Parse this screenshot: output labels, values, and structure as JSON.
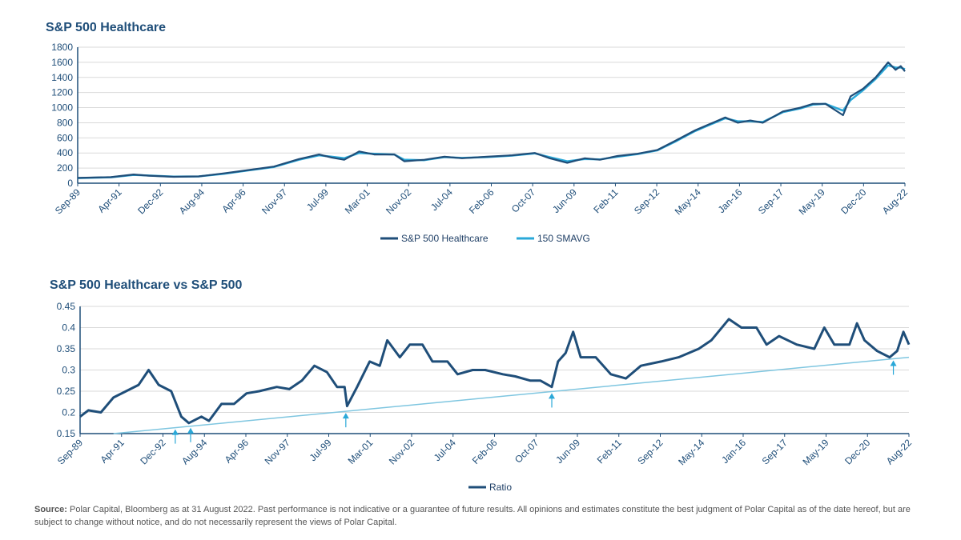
{
  "colors": {
    "primary": "#1f4e79",
    "sma": "#2aa8d8",
    "trend": "#7fc6e0",
    "grid": "#d9d9d9",
    "text": "#1f4e79"
  },
  "x_tick_labels": [
    "Sep-89",
    "Apr-91",
    "Dec-92",
    "Aug-94",
    "Apr-96",
    "Nov-97",
    "Jul-99",
    "Mar-01",
    "Nov-02",
    "Jul-04",
    "Feb-06",
    "Oct-07",
    "Jun-09",
    "Feb-11",
    "Sep-12",
    "May-14",
    "Jan-16",
    "Sep-17",
    "May-19",
    "Dec-20",
    "Aug-22"
  ],
  "chart_data": [
    {
      "type": "line",
      "title": "S&P 500 Healthcare",
      "xlim": [
        "Sep-89",
        "Aug-22"
      ],
      "ylim": [
        0,
        1800
      ],
      "y_ticks": [
        0,
        200,
        400,
        600,
        800,
        1000,
        1200,
        1400,
        1600,
        1800
      ],
      "grid": true,
      "legend": "bottom",
      "series": [
        {
          "name": "S&P 500 Healthcare",
          "color": "#1f4e79",
          "x": [
            1989.67,
            1991.0,
            1991.9,
            1992.5,
            1993.5,
            1994.5,
            1995.5,
            1996.5,
            1997.5,
            1998.5,
            1999.3,
            1999.8,
            2000.3,
            2000.9,
            2001.5,
            2002.3,
            2002.7,
            2003.5,
            2004.3,
            2005.0,
            2006.0,
            2007.0,
            2007.9,
            2008.5,
            2009.2,
            2009.9,
            2010.5,
            2011.2,
            2012.0,
            2012.8,
            2013.5,
            2014.3,
            2015.5,
            2016.0,
            2016.5,
            2017.0,
            2017.8,
            2018.5,
            2019.0,
            2019.5,
            2020.2,
            2020.5,
            2021.0,
            2021.5,
            2022.0,
            2022.3,
            2022.5,
            2022.67
          ],
          "y": [
            70,
            80,
            115,
            100,
            85,
            90,
            130,
            175,
            220,
            320,
            380,
            340,
            310,
            420,
            380,
            380,
            290,
            310,
            350,
            330,
            350,
            370,
            400,
            330,
            270,
            330,
            310,
            360,
            390,
            440,
            560,
            700,
            870,
            800,
            830,
            800,
            950,
            1000,
            1050,
            1050,
            900,
            1150,
            1250,
            1400,
            1600,
            1500,
            1550,
            1480
          ]
        },
        {
          "name": "150 SMAVG",
          "color": "#2aa8d8",
          "x": [
            1989.67,
            1991.0,
            1991.9,
            1992.5,
            1993.5,
            1994.5,
            1995.5,
            1996.5,
            1997.5,
            1998.5,
            1999.3,
            1999.8,
            2000.3,
            2000.9,
            2001.5,
            2002.3,
            2002.7,
            2003.5,
            2004.3,
            2005.0,
            2006.0,
            2007.0,
            2007.9,
            2008.5,
            2009.2,
            2009.9,
            2010.5,
            2011.2,
            2012.0,
            2012.8,
            2013.5,
            2014.3,
            2015.5,
            2016.0,
            2016.5,
            2017.0,
            2017.8,
            2018.5,
            2019.0,
            2019.5,
            2020.2,
            2020.5,
            2021.0,
            2021.5,
            2022.0,
            2022.3,
            2022.5,
            2022.67
          ],
          "y": [
            68,
            78,
            110,
            102,
            88,
            90,
            125,
            170,
            215,
            310,
            370,
            350,
            330,
            400,
            390,
            380,
            310,
            305,
            345,
            335,
            345,
            365,
            395,
            345,
            290,
            320,
            315,
            350,
            385,
            435,
            550,
            690,
            860,
            820,
            820,
            810,
            940,
            990,
            1040,
            1050,
            960,
            1100,
            1230,
            1380,
            1560,
            1530,
            1530,
            1510
          ]
        }
      ]
    },
    {
      "type": "line",
      "title": "S&P 500 Healthcare vs S&P 500",
      "xlim": [
        "Sep-89",
        "Aug-22"
      ],
      "ylim": [
        0.15,
        0.45
      ],
      "y_ticks": [
        "0.15",
        "0.2",
        "0.25",
        "0.3",
        "0.35",
        "0.4",
        "0.45"
      ],
      "grid": true,
      "legend": "bottom",
      "series": [
        {
          "name": "Ratio",
          "color": "#1f4e79",
          "x": [
            1989.67,
            1990.0,
            1990.5,
            1991.0,
            1991.5,
            1992.0,
            1992.4,
            1992.8,
            1993.3,
            1993.7,
            1994.0,
            1994.5,
            1994.8,
            1995.3,
            1995.8,
            1996.3,
            1996.8,
            1997.5,
            1998.0,
            1998.5,
            1999.0,
            1999.5,
            1999.9,
            2000.2,
            2000.3,
            2000.7,
            2001.2,
            2001.6,
            2001.9,
            2002.4,
            2002.8,
            2003.3,
            2003.7,
            2004.3,
            2004.7,
            2005.3,
            2005.8,
            2006.5,
            2007.0,
            2007.6,
            2008.0,
            2008.45,
            2008.7,
            2009.0,
            2009.3,
            2009.6,
            2010.2,
            2010.8,
            2011.4,
            2012.0,
            2012.8,
            2013.5,
            2014.3,
            2014.8,
            2015.5,
            2016.0,
            2016.6,
            2017.0,
            2017.5,
            2018.2,
            2018.9,
            2019.3,
            2019.7,
            2020.3,
            2020.6,
            2020.9,
            2021.4,
            2021.9,
            2022.2,
            2022.45,
            2022.67
          ],
          "y": [
            0.19,
            0.205,
            0.2,
            0.235,
            0.25,
            0.265,
            0.3,
            0.265,
            0.25,
            0.19,
            0.175,
            0.19,
            0.18,
            0.22,
            0.22,
            0.245,
            0.25,
            0.26,
            0.255,
            0.275,
            0.31,
            0.295,
            0.26,
            0.26,
            0.215,
            0.26,
            0.32,
            0.31,
            0.37,
            0.33,
            0.36,
            0.36,
            0.32,
            0.32,
            0.29,
            0.3,
            0.3,
            0.29,
            0.285,
            0.275,
            0.275,
            0.26,
            0.32,
            0.34,
            0.39,
            0.33,
            0.33,
            0.29,
            0.28,
            0.31,
            0.32,
            0.33,
            0.35,
            0.37,
            0.42,
            0.4,
            0.4,
            0.36,
            0.38,
            0.36,
            0.35,
            0.4,
            0.36,
            0.36,
            0.41,
            0.37,
            0.345,
            0.33,
            0.345,
            0.39,
            0.36
          ]
        }
      ],
      "trendline": {
        "color": "#7fc6e0",
        "x": [
          1991.0,
          2022.67
        ],
        "y": [
          0.15,
          0.33
        ]
      },
      "arrow_annotations_x": [
        1993.46,
        1994.07,
        2000.25,
        2008.45,
        2022.05
      ]
    }
  ],
  "source": {
    "label": "Source:",
    "text": " Polar Capital,  Bloomberg as at 31 August 2022. Past performance is not indicative or a guarantee of future results. All opinions and estimates constitute the best judgment of Polar Capital as of the date hereof, but are subject to change without notice, and do not necessarily represent the views of Polar Capital."
  }
}
